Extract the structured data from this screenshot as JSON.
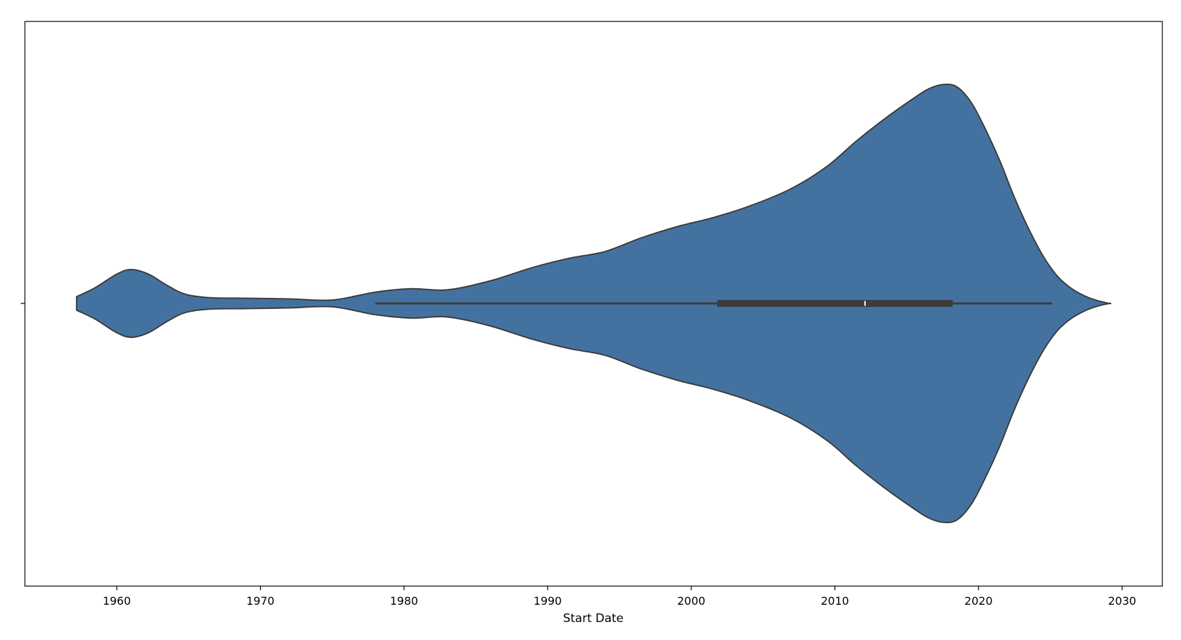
{
  "chart_data": {
    "type": "violin",
    "title": "",
    "xlabel": "Start Date",
    "ylabel": "",
    "xlim": [
      1953.6,
      2032.8
    ],
    "xticks": [
      1960,
      1970,
      1980,
      1990,
      2000,
      2010,
      2020,
      2030
    ],
    "xtick_labels": [
      "1960",
      "1970",
      "1980",
      "1990",
      "2000",
      "2010",
      "2020",
      "2030"
    ],
    "grid": false,
    "fill_color": "#4472a0",
    "edge_color": "#3c3c3c",
    "density": {
      "x": [
        1957.2,
        1958.5,
        1960.0,
        1961.0,
        1962.2,
        1963.5,
        1964.8,
        1966.5,
        1969.0,
        1972.0,
        1975.0,
        1978.0,
        1980.5,
        1983.0,
        1986.0,
        1989.0,
        1991.5,
        1994.0,
        1996.5,
        1999.0,
        2001.5,
        2004.0,
        2007.0,
        2009.5,
        2011.5,
        2013.5,
        2015.5,
        2016.5,
        2017.5,
        2018.5,
        2019.5,
        2020.5,
        2021.5,
        2022.5,
        2023.5,
        2024.5,
        2025.5,
        2026.5,
        2027.5,
        2028.3,
        2029.1
      ],
      "half_width": [
        0.03,
        0.07,
        0.13,
        0.15,
        0.13,
        0.08,
        0.04,
        0.025,
        0.023,
        0.02,
        0.015,
        0.05,
        0.065,
        0.06,
        0.1,
        0.16,
        0.2,
        0.23,
        0.29,
        0.34,
        0.38,
        0.43,
        0.51,
        0.61,
        0.72,
        0.82,
        0.91,
        0.95,
        0.97,
        0.96,
        0.89,
        0.77,
        0.63,
        0.47,
        0.33,
        0.21,
        0.12,
        0.065,
        0.03,
        0.012,
        0.0
      ]
    },
    "box": {
      "whisker_low": 1978.0,
      "q1": 2001.8,
      "median": 2012.1,
      "q3": 2018.2,
      "whisker_high": 2025.1
    }
  }
}
